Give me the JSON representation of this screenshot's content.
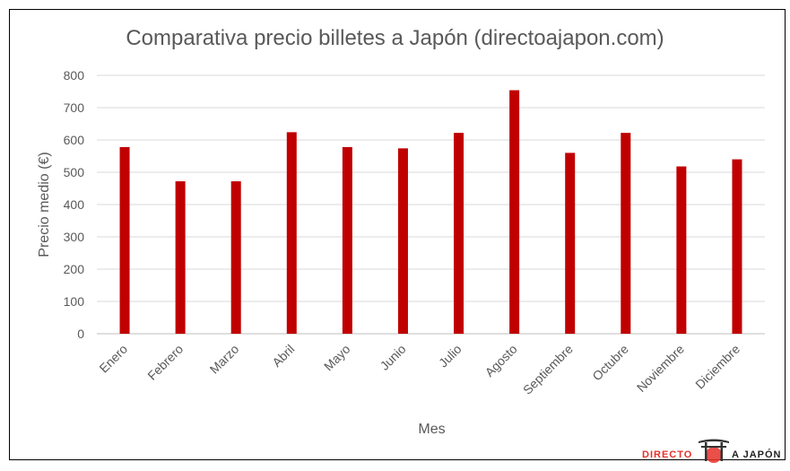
{
  "chart_data": {
    "type": "bar",
    "title": "Comparativa precio billetes a Japón (directoajapon.com)",
    "xlabel": "Mes",
    "ylabel": "Precio medio (€)",
    "categories": [
      "Enero",
      "Febrero",
      "Marzo",
      "Abril",
      "Mayo",
      "Junio",
      "Julio",
      "Agosto",
      "Septiembre",
      "Octubre",
      "Noviembre",
      "Diciembre"
    ],
    "values": [
      578,
      472,
      472,
      624,
      578,
      574,
      622,
      754,
      560,
      622,
      518,
      540
    ],
    "ylim": [
      0,
      800
    ],
    "yticks": [
      0,
      100,
      200,
      300,
      400,
      500,
      600,
      700,
      800
    ],
    "grid": true,
    "legend": "none",
    "bar_color": "#c00000"
  },
  "logo": {
    "text_left": "DIRECTO",
    "text_right": "A JAPÓN",
    "accent_color": "#e8302a"
  }
}
